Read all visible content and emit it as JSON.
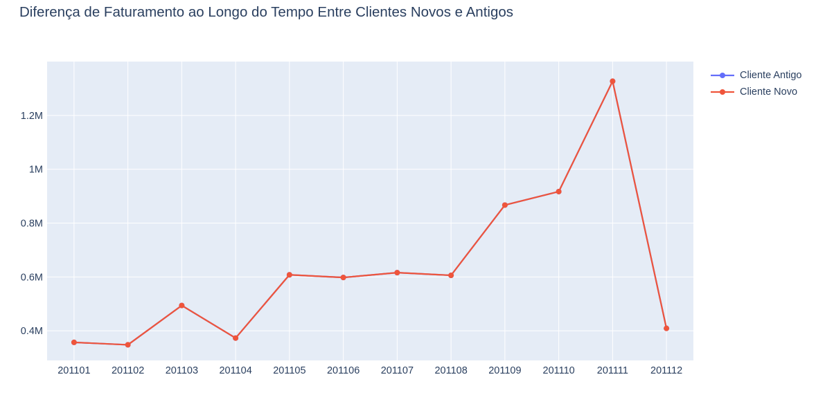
{
  "chart_data": {
    "type": "line",
    "title": "Diferença de Faturamento ao Longo do Tempo Entre Clientes Novos e Antigos",
    "xlabel": "",
    "ylabel": "",
    "categories": [
      "201101",
      "201102",
      "201103",
      "201104",
      "201105",
      "201106",
      "201107",
      "201108",
      "201109",
      "201110",
      "201111",
      "201112"
    ],
    "ylim": [
      0.29,
      1.4
    ],
    "y_ticks": [
      0.4,
      0.6,
      0.8,
      1.0,
      1.2
    ],
    "y_tick_labels": [
      "0.4M",
      "0.6M",
      "0.8M",
      "1M",
      "1.2M"
    ],
    "grid": true,
    "legend_position": "top-right",
    "series": [
      {
        "name": "Cliente Antigo",
        "color": "#636efa",
        "values": [
          0.357,
          0.348,
          0.494,
          0.373,
          0.608,
          0.598,
          0.616,
          0.606,
          0.867,
          0.917,
          1.327,
          0.409
        ]
      },
      {
        "name": "Cliente Novo",
        "color": "#ef553b",
        "values": [
          0.357,
          0.348,
          0.494,
          0.373,
          0.608,
          0.598,
          0.616,
          0.606,
          0.867,
          0.917,
          1.327,
          0.409
        ]
      }
    ]
  }
}
